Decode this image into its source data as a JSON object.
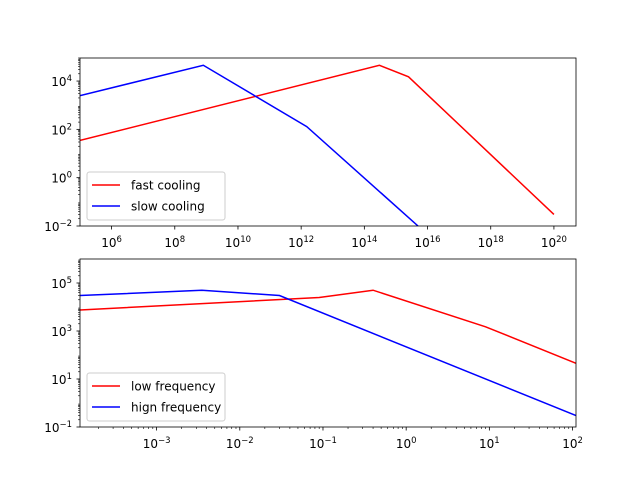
{
  "chart_data": [
    {
      "type": "line",
      "xscale": "log",
      "yscale": "log",
      "xlim": [
        100000.0,
        5e+20
      ],
      "ylim": [
        0.01,
        90000
      ],
      "grid": false,
      "legend_position": "lower-left",
      "xticks": [
        {
          "value": 1000000.0,
          "base": "10",
          "exp": "6"
        },
        {
          "value": 100000000.0,
          "base": "10",
          "exp": "8"
        },
        {
          "value": 10000000000.0,
          "base": "10",
          "exp": "10"
        },
        {
          "value": 1000000000000.0,
          "base": "10",
          "exp": "12"
        },
        {
          "value": 100000000000000.0,
          "base": "10",
          "exp": "14"
        },
        {
          "value": 1e+16,
          "base": "10",
          "exp": "16"
        },
        {
          "value": 1e+18,
          "base": "10",
          "exp": "18"
        },
        {
          "value": 1e+20,
          "base": "10",
          "exp": "20"
        }
      ],
      "yticks": [
        {
          "value": 0.01,
          "base": "10",
          "exp": "−2"
        },
        {
          "value": 1,
          "base": "10",
          "exp": "0"
        },
        {
          "value": 100,
          "base": "10",
          "exp": "2"
        },
        {
          "value": 10000,
          "base": "10",
          "exp": "4"
        }
      ],
      "series": [
        {
          "name": "fast cooling",
          "color": "#ff0000",
          "x": [
            100000.0,
            300000000000000.0,
            2500000000000000.0,
            1e+20
          ],
          "y": [
            35,
            45000,
            15000,
            0.03
          ]
        },
        {
          "name": "slow cooling",
          "color": "#0000ff",
          "x": [
            100000.0,
            800000000.0,
            1500000000000.0,
            5000000000000000.0
          ],
          "y": [
            2500,
            45000,
            130,
            0.01
          ]
        }
      ]
    },
    {
      "type": "line",
      "xscale": "log",
      "yscale": "log",
      "xlim": [
        0.00012,
        110
      ],
      "ylim": [
        0.1,
        1000000
      ],
      "grid": false,
      "legend_position": "lower-left",
      "xticks": [
        {
          "value": 0.001,
          "base": "10",
          "exp": "−3"
        },
        {
          "value": 0.01,
          "base": "10",
          "exp": "−2"
        },
        {
          "value": 0.1,
          "base": "10",
          "exp": "−1"
        },
        {
          "value": 1,
          "base": "10",
          "exp": "0"
        },
        {
          "value": 10,
          "base": "10",
          "exp": "1"
        },
        {
          "value": 100,
          "base": "10",
          "exp": "2"
        }
      ],
      "yticks": [
        {
          "value": 0.1,
          "base": "10",
          "exp": "−1"
        },
        {
          "value": 10,
          "base": "10",
          "exp": "1"
        },
        {
          "value": 1000,
          "base": "10",
          "exp": "3"
        },
        {
          "value": 100000,
          "base": "10",
          "exp": "5"
        }
      ],
      "series": [
        {
          "name": "low frequency",
          "color": "#ff0000",
          "x": [
            0.00012,
            0.09,
            0.4,
            9,
            110
          ],
          "y": [
            7500,
            25000,
            50000,
            1500,
            45
          ]
        },
        {
          "name": "hign frequency",
          "color": "#0000ff",
          "x": [
            0.00012,
            0.0035,
            0.03,
            110
          ],
          "y": [
            30000,
            50000,
            30000,
            0.3
          ]
        }
      ]
    }
  ]
}
